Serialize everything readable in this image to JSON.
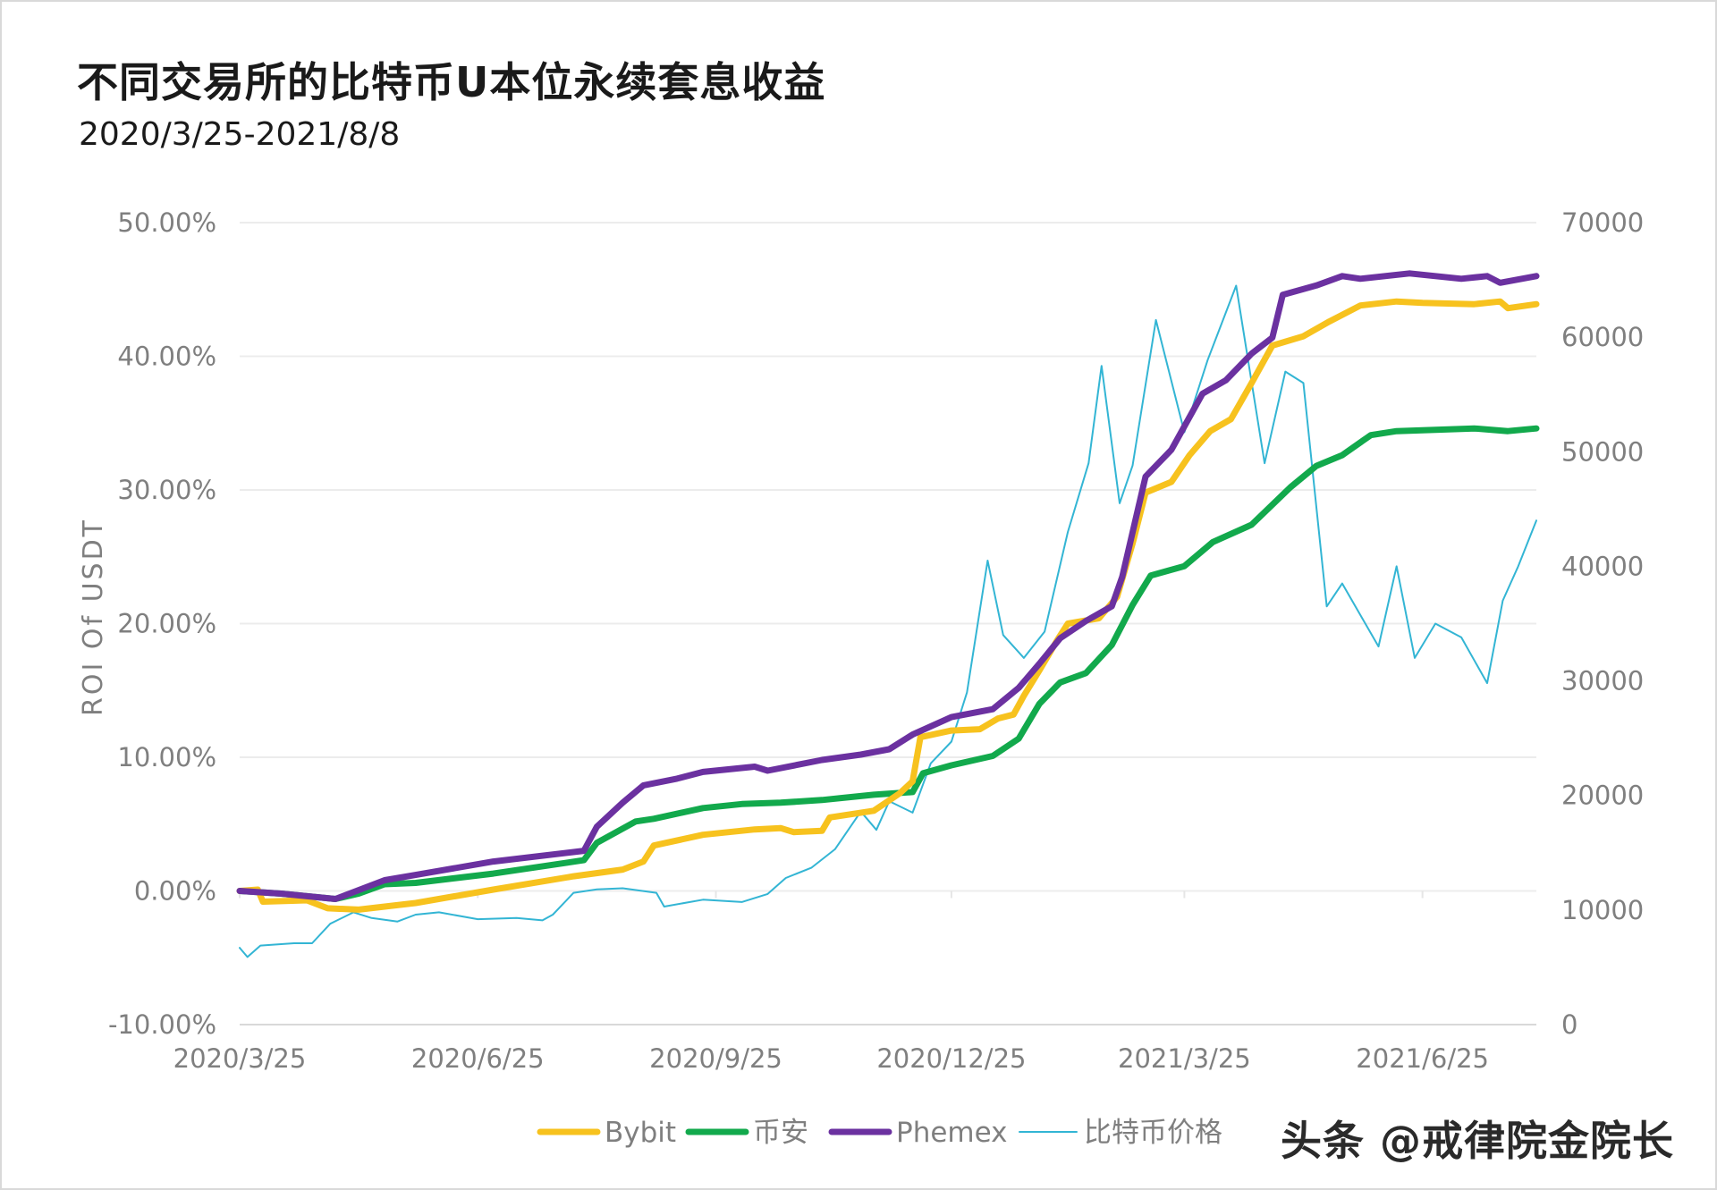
{
  "title": "不同交易所的比特币U本位永续套息收益",
  "subtitle": "2020/3/25-2021/8/8",
  "watermark": "头条 @戒律院金院长",
  "chart_data": {
    "type": "line",
    "x_start": "2020/3/25",
    "x_end": "2021/8/8",
    "x_ticks": [
      "2020/3/25",
      "2020/6/25",
      "2020/9/25",
      "2020/12/25",
      "2021/3/25",
      "2021/6/25"
    ],
    "ylabel": "ROI Of USDT",
    "y_left_ticks": [
      "-10.00%",
      "0.00%",
      "10.00%",
      "20.00%",
      "30.00%",
      "40.00%",
      "50.00%"
    ],
    "y_right_ticks": [
      "0",
      "10000",
      "20000",
      "30000",
      "40000",
      "50000",
      "60000",
      "70000"
    ],
    "ylim_left": [
      -10,
      50
    ],
    "ylim_right": [
      0,
      70000
    ],
    "grid": true,
    "legend_position": "bottom",
    "series": [
      {
        "name": "Bybit",
        "axis": "left",
        "color": "#F7C21E",
        "width": 7,
        "points": [
          [
            "2020/3/25",
            0
          ],
          [
            "2020/4/1",
            0.1
          ],
          [
            "2020/4/3",
            -0.8
          ],
          [
            "2020/4/20",
            -0.7
          ],
          [
            "2020/4/28",
            -1.3
          ],
          [
            "2020/5/10",
            -1.4
          ],
          [
            "2020/6/1",
            -0.9
          ],
          [
            "2020/7/1",
            0.1
          ],
          [
            "2020/8/1",
            1.1
          ],
          [
            "2020/8/20",
            1.6
          ],
          [
            "2020/8/28",
            2.2
          ],
          [
            "2020/9/1",
            3.4
          ],
          [
            "2020/9/20",
            4.2
          ],
          [
            "2020/10/10",
            4.6
          ],
          [
            "2020/10/20",
            4.7
          ],
          [
            "2020/10/25",
            4.4
          ],
          [
            "2020/11/5",
            4.5
          ],
          [
            "2020/11/8",
            5.5
          ],
          [
            "2020/11/25",
            6.0
          ],
          [
            "2020/12/5",
            7.3
          ],
          [
            "2020/12/10",
            8.2
          ],
          [
            "2020/12/13",
            11.5
          ],
          [
            "2020/12/25",
            12.0
          ],
          [
            "2021/1/5",
            12.1
          ],
          [
            "2021/1/12",
            12.9
          ],
          [
            "2021/1/18",
            13.2
          ],
          [
            "2021/1/22",
            14.6
          ],
          [
            "2021/1/28",
            16.5
          ],
          [
            "2021/2/4",
            18.8
          ],
          [
            "2021/2/8",
            20.0
          ],
          [
            "2021/2/20",
            20.4
          ],
          [
            "2021/2/27",
            22.0
          ],
          [
            "2021/3/5",
            26.0
          ],
          [
            "2021/3/10",
            29.8
          ],
          [
            "2021/3/20",
            30.6
          ],
          [
            "2021/3/27",
            32.6
          ],
          [
            "2021/4/4",
            34.4
          ],
          [
            "2021/4/12",
            35.3
          ],
          [
            "2021/4/20",
            38.0
          ],
          [
            "2021/4/28",
            40.8
          ],
          [
            "2021/5/10",
            41.5
          ],
          [
            "2021/5/20",
            42.6
          ],
          [
            "2021/6/1",
            43.8
          ],
          [
            "2021/6/15",
            44.1
          ],
          [
            "2021/6/25",
            44.0
          ],
          [
            "2021/7/15",
            43.9
          ],
          [
            "2021/7/25",
            44.1
          ],
          [
            "2021/7/28",
            43.6
          ],
          [
            "2021/8/8",
            43.9
          ]
        ]
      },
      {
        "name": "币安",
        "axis": "left",
        "color": "#12A94C",
        "width": 7,
        "points": [
          [
            "2020/3/25",
            0
          ],
          [
            "2020/4/10",
            -0.2
          ],
          [
            "2020/5/1",
            -0.6
          ],
          [
            "2020/5/10",
            -0.2
          ],
          [
            "2020/5/20",
            0.5
          ],
          [
            "2020/6/1",
            0.6
          ],
          [
            "2020/7/1",
            1.3
          ],
          [
            "2020/8/5",
            2.3
          ],
          [
            "2020/8/10",
            3.6
          ],
          [
            "2020/8/25",
            5.2
          ],
          [
            "2020/9/1",
            5.4
          ],
          [
            "2020/9/20",
            6.2
          ],
          [
            "2020/10/5",
            6.5
          ],
          [
            "2020/10/20",
            6.6
          ],
          [
            "2020/11/5",
            6.8
          ],
          [
            "2020/11/25",
            7.2
          ],
          [
            "2020/12/10",
            7.4
          ],
          [
            "2020/12/14",
            8.8
          ],
          [
            "2020/12/25",
            9.4
          ],
          [
            "2021/1/10",
            10.1
          ],
          [
            "2021/1/20",
            11.4
          ],
          [
            "2021/1/28",
            14.0
          ],
          [
            "2021/2/5",
            15.6
          ],
          [
            "2021/2/15",
            16.3
          ],
          [
            "2021/2/25",
            18.4
          ],
          [
            "2021/3/5",
            21.4
          ],
          [
            "2021/3/12",
            23.6
          ],
          [
            "2021/3/25",
            24.3
          ],
          [
            "2021/4/5",
            26.1
          ],
          [
            "2021/4/20",
            27.4
          ],
          [
            "2021/5/5",
            30.2
          ],
          [
            "2021/5/15",
            31.8
          ],
          [
            "2021/5/25",
            32.6
          ],
          [
            "2021/6/5",
            34.1
          ],
          [
            "2021/6/15",
            34.4
          ],
          [
            "2021/7/15",
            34.6
          ],
          [
            "2021/7/28",
            34.4
          ],
          [
            "2021/8/8",
            34.6
          ]
        ]
      },
      {
        "name": "Phemex",
        "axis": "left",
        "color": "#6B31A0",
        "width": 7,
        "points": [
          [
            "2020/3/25",
            0
          ],
          [
            "2020/4/10",
            -0.2
          ],
          [
            "2020/5/1",
            -0.6
          ],
          [
            "2020/5/20",
            0.8
          ],
          [
            "2020/6/1",
            1.2
          ],
          [
            "2020/7/1",
            2.2
          ],
          [
            "2020/8/5",
            3.0
          ],
          [
            "2020/8/10",
            4.8
          ],
          [
            "2020/8/20",
            6.6
          ],
          [
            "2020/8/28",
            7.9
          ],
          [
            "2020/9/10",
            8.4
          ],
          [
            "2020/9/20",
            8.9
          ],
          [
            "2020/10/10",
            9.3
          ],
          [
            "2020/10/15",
            9.0
          ],
          [
            "2020/11/5",
            9.8
          ],
          [
            "2020/11/20",
            10.2
          ],
          [
            "2020/12/1",
            10.6
          ],
          [
            "2020/12/10",
            11.7
          ],
          [
            "2020/12/25",
            13.0
          ],
          [
            "2021/1/10",
            13.6
          ],
          [
            "2021/1/20",
            15.2
          ],
          [
            "2021/1/28",
            17.0
          ],
          [
            "2021/2/5",
            18.9
          ],
          [
            "2021/2/15",
            20.2
          ],
          [
            "2021/2/25",
            21.3
          ],
          [
            "2021/3/1",
            23.5
          ],
          [
            "2021/3/10",
            31.0
          ],
          [
            "2021/3/20",
            33.0
          ],
          [
            "2021/4/1",
            37.2
          ],
          [
            "2021/4/10",
            38.2
          ],
          [
            "2021/4/20",
            40.2
          ],
          [
            "2021/4/28",
            41.4
          ],
          [
            "2021/5/2",
            44.6
          ],
          [
            "2021/5/15",
            45.3
          ],
          [
            "2021/5/25",
            46.0
          ],
          [
            "2021/6/1",
            45.8
          ],
          [
            "2021/6/20",
            46.2
          ],
          [
            "2021/7/10",
            45.8
          ],
          [
            "2021/7/20",
            46.0
          ],
          [
            "2021/7/25",
            45.5
          ],
          [
            "2021/8/8",
            46.0
          ]
        ]
      },
      {
        "name": "比特币价格",
        "axis": "right",
        "color": "#33B5D4",
        "width": 2,
        "points": [
          [
            "2020/3/25",
            6700
          ],
          [
            "2020/3/28",
            5900
          ],
          [
            "2020/4/2",
            6900
          ],
          [
            "2020/4/15",
            7100
          ],
          [
            "2020/4/22",
            7100
          ],
          [
            "2020/4/29",
            8800
          ],
          [
            "2020/5/8",
            9800
          ],
          [
            "2020/5/15",
            9300
          ],
          [
            "2020/5/25",
            9000
          ],
          [
            "2020/6/1",
            9600
          ],
          [
            "2020/6/10",
            9800
          ],
          [
            "2020/6/25",
            9200
          ],
          [
            "2020/7/10",
            9300
          ],
          [
            "2020/7/20",
            9100
          ],
          [
            "2020/7/24",
            9600
          ],
          [
            "2020/8/1",
            11500
          ],
          [
            "2020/8/10",
            11800
          ],
          [
            "2020/8/20",
            11900
          ],
          [
            "2020/9/2",
            11500
          ],
          [
            "2020/9/5",
            10300
          ],
          [
            "2020/9/20",
            10900
          ],
          [
            "2020/10/5",
            10700
          ],
          [
            "2020/10/15",
            11400
          ],
          [
            "2020/10/22",
            12800
          ],
          [
            "2020/11/1",
            13700
          ],
          [
            "2020/11/10",
            15300
          ],
          [
            "2020/11/20",
            18600
          ],
          [
            "2020/11/26",
            17000
          ],
          [
            "2020/12/1",
            19500
          ],
          [
            "2020/12/10",
            18500
          ],
          [
            "2020/12/17",
            22800
          ],
          [
            "2020/12/25",
            24700
          ],
          [
            "2020/12/31",
            29000
          ],
          [
            "2021/1/8",
            40500
          ],
          [
            "2021/1/14",
            34000
          ],
          [
            "2021/1/22",
            32000
          ],
          [
            "2021/1/30",
            34300
          ],
          [
            "2021/2/8",
            43000
          ],
          [
            "2021/2/16",
            49000
          ],
          [
            "2021/2/21",
            57500
          ],
          [
            "2021/2/28",
            45500
          ],
          [
            "2021/3/5",
            48800
          ],
          [
            "2021/3/14",
            61500
          ],
          [
            "2021/3/25",
            51700
          ],
          [
            "2021/4/3",
            58000
          ],
          [
            "2021/4/14",
            64500
          ],
          [
            "2021/4/25",
            49000
          ],
          [
            "2021/5/3",
            57000
          ],
          [
            "2021/5/10",
            56000
          ],
          [
            "2021/5/13",
            49500
          ],
          [
            "2021/5/19",
            36500
          ],
          [
            "2021/5/25",
            38500
          ],
          [
            "2021/6/8",
            33000
          ],
          [
            "2021/6/15",
            40000
          ],
          [
            "2021/6/22",
            32000
          ],
          [
            "2021/6/30",
            35000
          ],
          [
            "2021/7/10",
            33800
          ],
          [
            "2021/7/20",
            29800
          ],
          [
            "2021/7/26",
            37000
          ],
          [
            "2021/8/1",
            40000
          ],
          [
            "2021/8/8",
            44000
          ]
        ]
      }
    ]
  }
}
